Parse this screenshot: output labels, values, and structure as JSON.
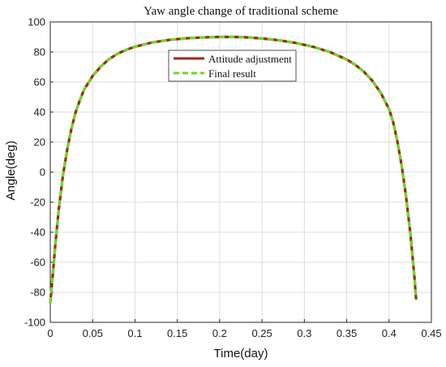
{
  "chart_data": {
    "type": "line",
    "title": "Yaw angle change of traditional scheme",
    "xlabel": "Time(day)",
    "ylabel": "Angle(deg)",
    "xlim": [
      0,
      0.45
    ],
    "ylim": [
      -100,
      100
    ],
    "xticks": [
      0,
      0.05,
      0.1,
      0.15,
      0.2,
      0.25,
      0.3,
      0.35,
      0.4,
      0.45
    ],
    "xtick_labels": [
      "0",
      "0.05",
      "0.1",
      "0.15",
      "0.2",
      "0.25",
      "0.3",
      "0.35",
      "0.4",
      "0.45"
    ],
    "yticks": [
      -100,
      -80,
      -60,
      -40,
      -20,
      0,
      20,
      40,
      60,
      80,
      100
    ],
    "ytick_labels": [
      "-100",
      "-80",
      "-60",
      "-40",
      "-20",
      "0",
      "20",
      "40",
      "60",
      "80",
      "100"
    ],
    "grid": true,
    "legend_position": "top-center",
    "series": [
      {
        "name": "Attitude adjustment",
        "color": "#a0261a",
        "style": "solid",
        "x": [
          0,
          0.003,
          0.006,
          0.01,
          0.015,
          0.02,
          0.025,
          0.03,
          0.035,
          0.04,
          0.05,
          0.06,
          0.07,
          0.08,
          0.09,
          0.1,
          0.12,
          0.14,
          0.16,
          0.18,
          0.2,
          0.216,
          0.23,
          0.25,
          0.27,
          0.29,
          0.31,
          0.33,
          0.35,
          0.36,
          0.37,
          0.38,
          0.39,
          0.4,
          0.405,
          0.41,
          0.415,
          0.42,
          0.425,
          0.43,
          0.432
        ],
        "y": [
          -87,
          -68,
          -48,
          -25,
          -2,
          15,
          29,
          40,
          48,
          55,
          64,
          70.5,
          75.5,
          79,
          81.5,
          83.5,
          86.3,
          88,
          89.1,
          89.7,
          90,
          90,
          89.8,
          89,
          87.8,
          86,
          83.5,
          80,
          75,
          71.5,
          67,
          61,
          53,
          42,
          33,
          20,
          4,
          -16,
          -40,
          -70,
          -85
        ]
      },
      {
        "name": "Final result",
        "color": "#66dd22",
        "style": "dashed",
        "x": [
          0,
          0.003,
          0.006,
          0.01,
          0.015,
          0.02,
          0.025,
          0.03,
          0.035,
          0.04,
          0.05,
          0.06,
          0.07,
          0.08,
          0.09,
          0.1,
          0.12,
          0.14,
          0.16,
          0.18,
          0.2,
          0.216,
          0.23,
          0.25,
          0.27,
          0.29,
          0.31,
          0.33,
          0.35,
          0.36,
          0.37,
          0.38,
          0.39,
          0.4,
          0.405,
          0.41,
          0.415,
          0.42,
          0.425,
          0.43,
          0.432
        ],
        "y": [
          -87,
          -68,
          -48,
          -25,
          -2,
          15,
          29,
          40,
          48,
          55,
          64,
          70.5,
          75.5,
          79,
          81.5,
          83.5,
          86.3,
          88,
          89.1,
          89.7,
          90,
          90,
          89.8,
          89,
          87.8,
          86,
          83.5,
          80,
          75,
          71.5,
          67,
          61,
          53,
          42,
          33,
          20,
          4,
          -16,
          -40,
          -70,
          -85
        ]
      }
    ]
  }
}
